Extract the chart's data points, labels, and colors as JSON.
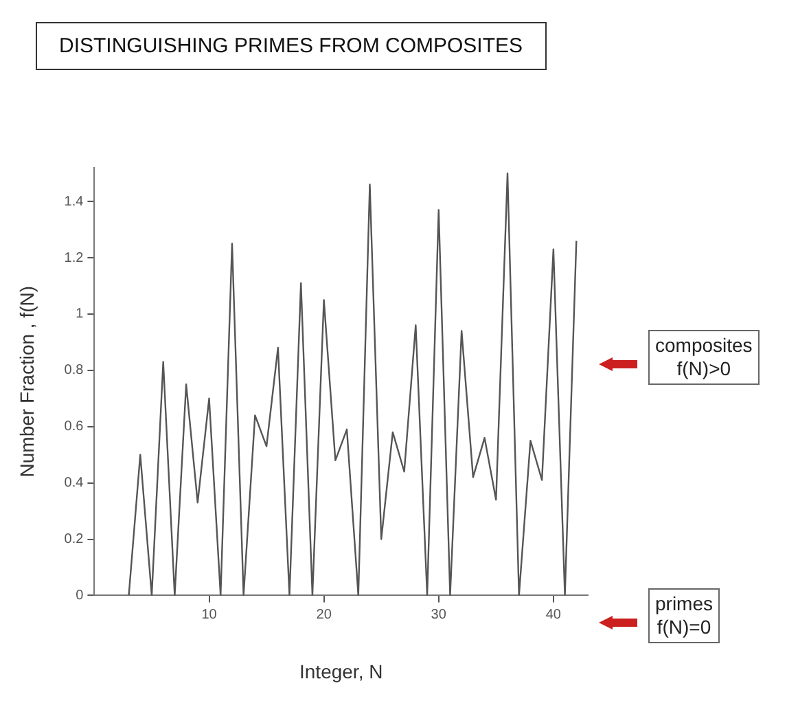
{
  "chart_data": {
    "type": "line",
    "title": "DISTINGUISHING PRIMES FROM COMPOSITES",
    "xlabel": "Integer, N",
    "ylabel": "Number Fraction , f(N)",
    "x": [
      3,
      4,
      5,
      6,
      7,
      8,
      9,
      10,
      11,
      12,
      13,
      14,
      15,
      16,
      17,
      18,
      19,
      20,
      21,
      22,
      23,
      24,
      25,
      26,
      27,
      28,
      29,
      30,
      31,
      32,
      33,
      34,
      35,
      36,
      37,
      38,
      39,
      40,
      41,
      42
    ],
    "series": [
      {
        "color": "#555555",
        "values": [
          0,
          0.5,
          0,
          0.83,
          0,
          0.75,
          0.33,
          0.7,
          0,
          1.25,
          0,
          0.64,
          0.53,
          0.88,
          0,
          1.11,
          0,
          1.05,
          0.48,
          0.59,
          0,
          1.46,
          0.2,
          0.58,
          0.44,
          0.96,
          0,
          1.37,
          0,
          0.94,
          0.42,
          0.56,
          0.34,
          1.5,
          0,
          0.55,
          0.41,
          1.23,
          0,
          1.26
        ]
      }
    ],
    "xlim": [
      0,
      43
    ],
    "ylim": [
      0,
      1.52
    ],
    "xticks": [
      10,
      20,
      30,
      40
    ],
    "yticks": [
      0,
      0.2,
      0.4,
      0.6,
      0.8,
      1,
      1.2,
      1.4
    ],
    "grid": false,
    "legend": false,
    "marker": "none",
    "line_style": "solid",
    "annotations": [
      "composites\nf(N)>0",
      "primes\nf(N)=0"
    ]
  }
}
